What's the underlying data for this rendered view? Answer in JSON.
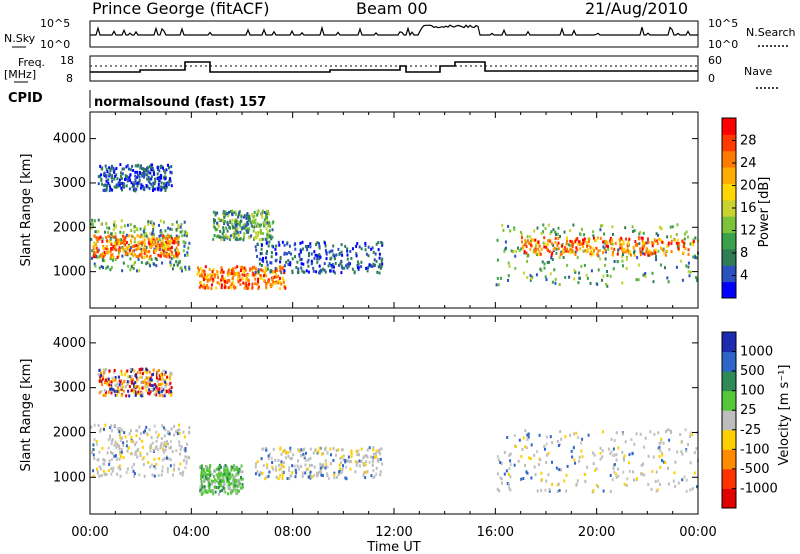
{
  "header": {
    "station": "Prince George (fitACF)",
    "beam": "Beam 00",
    "date": "21/Aug/2010"
  },
  "status": {
    "nsky_label": "N.Sky",
    "nsky_scale": [
      "10^5",
      "10^0"
    ],
    "nsearch_label": "N.Search",
    "nsearch_scale": [
      "10^5",
      "10^0"
    ],
    "freq_label": "Freq.",
    "freq_unit": "[MHz]",
    "freq_scale": [
      "18",
      "8"
    ],
    "nave_label": "Nave",
    "nave_scale": [
      "60",
      "0"
    ],
    "cpid_label": "CPID",
    "cpid_value": "normalsound (fast) 157"
  },
  "chart_data": [
    {
      "type": "heatmap",
      "name": "power",
      "ylabel": "Slant Range [km]",
      "y_ticks": [
        "1000",
        "2000",
        "3000",
        "4000"
      ],
      "ylim": [
        180,
        4600
      ],
      "colorbar_label": "Power [dB]",
      "colorbar_ticks": [
        "4",
        "8",
        "12",
        "16",
        "20",
        "24",
        "28"
      ],
      "colorbar_colors": [
        "#0000ff",
        "#2a52be",
        "#2e7d56",
        "#3aa04a",
        "#7cc33a",
        "#c8d230",
        "#ffd700",
        "#ffae00",
        "#ff7a00",
        "#ff3a00",
        "#ff0000"
      ],
      "xlim": [
        0,
        24
      ],
      "regions": [
        {
          "t": [
            0.0,
            3.9
          ],
          "r": [
            1050,
            2200
          ],
          "level": "mid"
        },
        {
          "t": [
            0.1,
            3.5
          ],
          "r": [
            1350,
            1850
          ],
          "level": "high"
        },
        {
          "t": [
            0.3,
            3.2
          ],
          "r": [
            2850,
            3450
          ],
          "level": "low"
        },
        {
          "t": [
            4.2,
            7.7
          ],
          "r": [
            650,
            1150
          ],
          "level": "high"
        },
        {
          "t": [
            4.8,
            7.2
          ],
          "r": [
            1750,
            2400
          ],
          "level": "mid"
        },
        {
          "t": [
            6.5,
            11.5
          ],
          "r": [
            1000,
            1700
          ],
          "level": "low"
        },
        {
          "t": [
            16.0,
            24.0
          ],
          "r": [
            700,
            2100
          ],
          "level": "mid"
        },
        {
          "t": [
            17.0,
            23.8
          ],
          "r": [
            1400,
            1800
          ],
          "level": "high"
        }
      ]
    },
    {
      "type": "heatmap",
      "name": "velocity",
      "ylabel": "Slant Range [km]",
      "y_ticks": [
        "1000",
        "2000",
        "3000",
        "4000"
      ],
      "ylim": [
        180,
        4600
      ],
      "colorbar_label": "Velocity [m s⁻¹]",
      "colorbar_ticks": [
        "1000",
        "500",
        "100",
        "25",
        "-25",
        "-100",
        "-500",
        "-1000"
      ],
      "colorbar_colors": [
        "#1d2bb0",
        "#2d66c8",
        "#2e8b57",
        "#55c83a",
        "#bdbdbd",
        "#ffd000",
        "#ff8c00",
        "#ff3300",
        "#e00000"
      ],
      "xlabel": "Time UT",
      "x_ticks": [
        "00:00",
        "04:00",
        "08:00",
        "12:00",
        "16:00",
        "20:00",
        "00:00"
      ],
      "xlim": [
        0,
        24
      ],
      "regions": [
        {
          "t": [
            0.0,
            3.9
          ],
          "r": [
            1050,
            2200
          ],
          "level": "gray"
        },
        {
          "t": [
            0.3,
            3.2
          ],
          "r": [
            2850,
            3450
          ],
          "level": "orange"
        },
        {
          "t": [
            4.3,
            6.0
          ],
          "r": [
            650,
            1300
          ],
          "level": "green"
        },
        {
          "t": [
            6.5,
            11.5
          ],
          "r": [
            1000,
            1700
          ],
          "level": "gray"
        },
        {
          "t": [
            16.0,
            24.0
          ],
          "r": [
            700,
            2100
          ],
          "level": "gray"
        }
      ]
    }
  ]
}
